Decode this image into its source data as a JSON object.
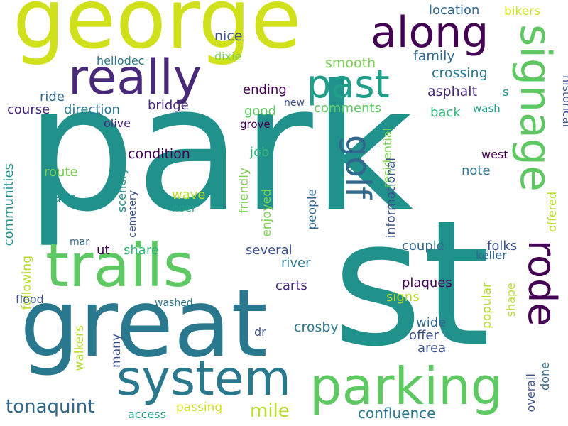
{
  "palette": {
    "lime": "#d0e11c",
    "yellowgreen": "#b5de2b",
    "green": "#5ec962",
    "lightgreen": "#7ad151",
    "teal": "#21918c",
    "tealdark": "#1f9e89",
    "blue": "#2a788e",
    "steel": "#31688e",
    "indigo": "#3b528b",
    "purple": "#482878",
    "darkpurple": "#440154",
    "mint": "#35b779"
  },
  "words": [
    {
      "text": "park",
      "color": "#21918c"
    },
    {
      "text": "st",
      "color": "#21918c"
    },
    {
      "text": "great",
      "color": "#2a788e"
    },
    {
      "text": "george",
      "color": "#d0e11c"
    },
    {
      "text": "trails",
      "color": "#5ec962"
    },
    {
      "text": "parking",
      "color": "#5ec962"
    },
    {
      "text": "system",
      "color": "#2a788e"
    },
    {
      "text": "really",
      "color": "#482878"
    },
    {
      "text": "along",
      "color": "#440154"
    },
    {
      "text": "past",
      "color": "#1f9e89"
    },
    {
      "text": "signage",
      "color": "#5ec962"
    },
    {
      "text": "rode",
      "color": "#440154"
    },
    {
      "text": "golf",
      "color": "#31688e"
    },
    {
      "text": "tonaquint",
      "color": "#31688e"
    },
    {
      "text": "mile",
      "color": "#b5de2b"
    },
    {
      "text": "confluence",
      "color": "#2a788e"
    },
    {
      "text": "location",
      "color": "#31688e"
    },
    {
      "text": "bikers",
      "color": "#d0e11c"
    },
    {
      "text": "nice",
      "color": "#3b528b"
    },
    {
      "text": "hellodec",
      "color": "#2a788e"
    },
    {
      "text": "dixie",
      "color": "#7ad151"
    },
    {
      "text": "family",
      "color": "#31688e"
    },
    {
      "text": "smooth",
      "color": "#7ad151"
    },
    {
      "text": "crossing",
      "color": "#2a788e"
    },
    {
      "text": "ending",
      "color": "#440154"
    },
    {
      "text": "asphalt",
      "color": "#482878"
    },
    {
      "text": "s",
      "color": "#21918c"
    },
    {
      "text": "ride",
      "color": "#31688e"
    },
    {
      "text": "course",
      "color": "#482878"
    },
    {
      "text": "direction",
      "color": "#2a788e"
    },
    {
      "text": "bridge",
      "color": "#482878"
    },
    {
      "text": "new",
      "color": "#3b528b"
    },
    {
      "text": "comments",
      "color": "#5ec962"
    },
    {
      "text": "good",
      "color": "#5ec962"
    },
    {
      "text": "back",
      "color": "#35b779"
    },
    {
      "text": "wash",
      "color": "#1f9e89"
    },
    {
      "text": "olive",
      "color": "#482878"
    },
    {
      "text": "grove",
      "color": "#440154"
    },
    {
      "text": "historical",
      "color": "#3b528b"
    },
    {
      "text": "condition",
      "color": "#440154"
    },
    {
      "text": "job",
      "color": "#35b779"
    },
    {
      "text": "residential",
      "color": "#7ad151"
    },
    {
      "text": "informational",
      "color": "#3b528b"
    },
    {
      "text": "west",
      "color": "#440154"
    },
    {
      "text": "route",
      "color": "#7ad151"
    },
    {
      "text": "note",
      "color": "#2a788e"
    },
    {
      "text": "communities",
      "color": "#21918c"
    },
    {
      "text": "following",
      "color": "#b5de2b"
    },
    {
      "text": "take",
      "color": "#21918c"
    },
    {
      "text": "scenery",
      "color": "#21918c"
    },
    {
      "text": "wave",
      "color": "#b5de2b"
    },
    {
      "text": "cemetery",
      "color": "#3b528b"
    },
    {
      "text": "noel",
      "color": "#1f9e89"
    },
    {
      "text": "friendly",
      "color": "#7ad151"
    },
    {
      "text": "enjoyed",
      "color": "#7ad151"
    },
    {
      "text": "people",
      "color": "#31688e"
    },
    {
      "text": "offered",
      "color": "#b5de2b"
    },
    {
      "text": "couple",
      "color": "#31688e"
    },
    {
      "text": "folks",
      "color": "#3b528b"
    },
    {
      "text": "keller",
      "color": "#31688e"
    },
    {
      "text": "mar",
      "color": "#31688e"
    },
    {
      "text": "ut",
      "color": "#440154"
    },
    {
      "text": "share",
      "color": "#35b779"
    },
    {
      "text": "several",
      "color": "#3b528b"
    },
    {
      "text": "river",
      "color": "#2a788e"
    },
    {
      "text": "carts",
      "color": "#482878"
    },
    {
      "text": "plaques",
      "color": "#440154"
    },
    {
      "text": "signs",
      "color": "#b5de2b"
    },
    {
      "text": "flood",
      "color": "#3b528b"
    },
    {
      "text": "washed",
      "color": "#2a788e"
    },
    {
      "text": "dr",
      "color": "#3b528b"
    },
    {
      "text": "crosby",
      "color": "#2a788e"
    },
    {
      "text": "wide",
      "color": "#31688e"
    },
    {
      "text": "offer",
      "color": "#3b528b"
    },
    {
      "text": "area",
      "color": "#3b528b"
    },
    {
      "text": "popular",
      "color": "#b5de2b"
    },
    {
      "text": "shape",
      "color": "#b5de2b"
    },
    {
      "text": "overall",
      "color": "#3b528b"
    },
    {
      "text": "done",
      "color": "#31688e"
    },
    {
      "text": "walkers",
      "color": "#b5de2b"
    },
    {
      "text": "many",
      "color": "#3b528b"
    },
    {
      "text": "access",
      "color": "#1f9e89"
    },
    {
      "text": "passing",
      "color": "#d0e11c"
    }
  ]
}
